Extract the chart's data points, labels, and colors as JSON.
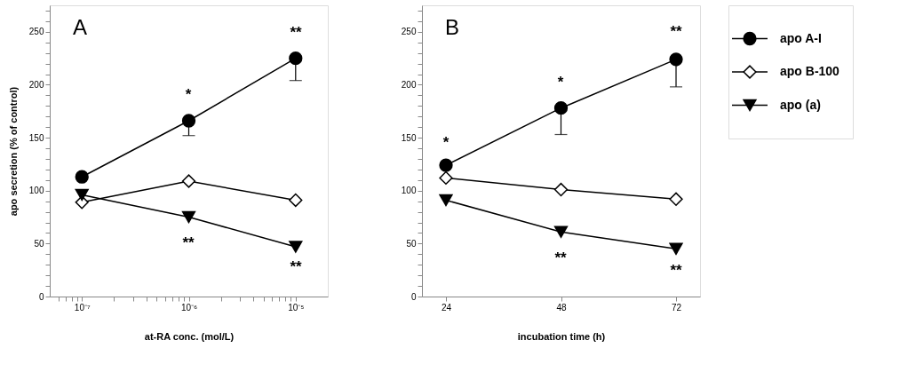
{
  "chart_data": [
    {
      "type": "line",
      "xlabel": "at-RA conc. (mol/L)",
      "ylabel": "apo secretion (% of control)",
      "log": "x",
      "grid": false,
      "legend": false,
      "x": [
        1e-07,
        1e-06,
        1e-05
      ],
      "xlim": [
        5e-08,
        2e-05
      ],
      "xticks": [
        {
          "value": 6e-08,
          "label": null
        },
        {
          "value": 7e-08,
          "label": null
        },
        {
          "value": 8e-08,
          "label": null
        },
        {
          "value": 9e-08,
          "label": null
        },
        {
          "value": 1e-07,
          "label": "10⁻⁷"
        },
        {
          "value": 2e-07,
          "label": null
        },
        {
          "value": 3e-07,
          "label": null
        },
        {
          "value": 4e-07,
          "label": null
        },
        {
          "value": 5e-07,
          "label": null
        },
        {
          "value": 6e-07,
          "label": null
        },
        {
          "value": 7e-07,
          "label": null
        },
        {
          "value": 8e-07,
          "label": null
        },
        {
          "value": 9e-07,
          "label": null
        },
        {
          "value": 1e-06,
          "label": "10⁻⁶"
        },
        {
          "value": 2e-06,
          "label": null
        },
        {
          "value": 3e-06,
          "label": null
        },
        {
          "value": 4e-06,
          "label": null
        },
        {
          "value": 5e-06,
          "label": null
        },
        {
          "value": 6e-06,
          "label": null
        },
        {
          "value": 7e-06,
          "label": null
        },
        {
          "value": 8e-06,
          "label": null
        },
        {
          "value": 9e-06,
          "label": null
        },
        {
          "value": 1e-05,
          "label": "10⁻⁵"
        }
      ],
      "ylim": [
        0,
        275
      ],
      "yticks": [
        0,
        {
          "value": 10,
          "label": null
        },
        {
          "value": 20,
          "label": null
        },
        {
          "value": 30,
          "label": null
        },
        {
          "value": 40,
          "label": null
        },
        50,
        {
          "value": 60,
          "label": null
        },
        {
          "value": 70,
          "label": null
        },
        {
          "value": 80,
          "label": null
        },
        {
          "value": 90,
          "label": null
        },
        100,
        {
          "value": 110,
          "label": null
        },
        {
          "value": 120,
          "label": null
        },
        {
          "value": 130,
          "label": null
        },
        {
          "value": 140,
          "label": null
        },
        150,
        {
          "value": 160,
          "label": null
        },
        {
          "value": 170,
          "label": null
        },
        {
          "value": 180,
          "label": null
        },
        {
          "value": 190,
          "label": null
        },
        200,
        {
          "value": 210,
          "label": null
        },
        {
          "value": 220,
          "label": null
        },
        {
          "value": 230,
          "label": null
        },
        {
          "value": 240,
          "label": null
        },
        250,
        {
          "value": 260,
          "label": null
        },
        {
          "value": 270,
          "label": null
        }
      ],
      "series": [
        {
          "color": "#000000",
          "marker": "circle",
          "values": [
            113,
            166,
            225
          ],
          "errors": [
            null,
            [
              152,
              166
            ],
            [
              204,
              225
            ]
          ]
        },
        {
          "color": "#000000",
          "marker": "diamond",
          "values": [
            89,
            109,
            91
          ]
        },
        {
          "color": "#000000",
          "marker": "triangle",
          "values": [
            96,
            75,
            47
          ]
        }
      ],
      "annotations": [
        "A",
        "*",
        "**",
        "**",
        "**"
      ]
    },
    {
      "type": "line",
      "xlabel": "incubation time (h)",
      "grid": false,
      "legend": "right",
      "x": [
        24,
        48,
        72
      ],
      "xlim": [
        19,
        77
      ],
      "xticks": [
        24,
        48,
        72
      ],
      "ylim": [
        0,
        275
      ],
      "yticks": [
        0,
        {
          "value": 10,
          "label": null
        },
        {
          "value": 20,
          "label": null
        },
        {
          "value": 30,
          "label": null
        },
        {
          "value": 40,
          "label": null
        },
        50,
        {
          "value": 60,
          "label": null
        },
        {
          "value": 70,
          "label": null
        },
        {
          "value": 80,
          "label": null
        },
        {
          "value": 90,
          "label": null
        },
        100,
        {
          "value": 110,
          "label": null
        },
        {
          "value": 120,
          "label": null
        },
        {
          "value": 130,
          "label": null
        },
        {
          "value": 140,
          "label": null
        },
        150,
        {
          "value": 160,
          "label": null
        },
        {
          "value": 170,
          "label": null
        },
        {
          "value": 180,
          "label": null
        },
        {
          "value": 190,
          "label": null
        },
        200,
        {
          "value": 210,
          "label": null
        },
        {
          "value": 220,
          "label": null
        },
        {
          "value": 230,
          "label": null
        },
        {
          "value": 240,
          "label": null
        },
        250,
        {
          "value": 260,
          "label": null
        },
        {
          "value": 270,
          "label": null
        }
      ],
      "series": [
        {
          "name": "apo A-I",
          "color": "#000000",
          "marker": "circle",
          "values": [
            124,
            178,
            224
          ],
          "errors": [
            null,
            [
              153,
              178
            ],
            [
              198,
              224
            ]
          ]
        },
        {
          "name": "apo B-100",
          "color": "#000000",
          "marker": "diamond",
          "values": [
            112,
            101,
            92
          ]
        },
        {
          "name": "apo (a)",
          "color": "#000000",
          "marker": "triangle",
          "values": [
            91,
            61,
            45
          ]
        }
      ],
      "annotations": [
        "B",
        "*",
        "*",
        "**",
        "**",
        "**"
      ]
    }
  ]
}
